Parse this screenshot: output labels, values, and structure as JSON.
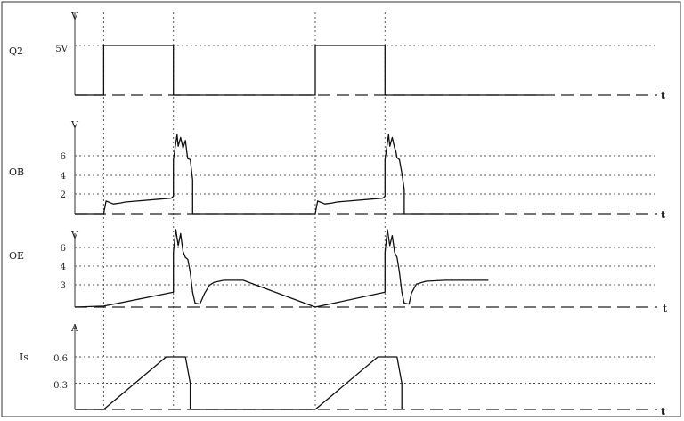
{
  "chart_data": [
    {
      "type": "line",
      "panel": "Q2",
      "label": "Q2",
      "unit": "V",
      "xlabel": "t",
      "y_ticks": [
        "5V"
      ],
      "ylim": [
        0,
        5
      ],
      "series": [
        {
          "x": [
            0,
            0.12,
            0.12,
            0.41,
            0.41,
            1.0,
            1.0,
            1.29,
            1.29,
            1.95
          ],
          "y": [
            0,
            0,
            5,
            5,
            0,
            0,
            5,
            5,
            0,
            0
          ]
        }
      ]
    },
    {
      "type": "line",
      "panel": "OB",
      "label": "OB",
      "unit": "V",
      "xlabel": "t",
      "y_ticks": [
        "6",
        "4",
        "2"
      ],
      "ylim": [
        0,
        6
      ],
      "series": [
        {
          "x": [
            0,
            0.12,
            0.13,
            0.16,
            0.19,
            0.21,
            0.4,
            0.41,
            0.41,
            0.425,
            0.43,
            0.44,
            0.45,
            0.46,
            0.465,
            0.47,
            0.48,
            0.49,
            0.49,
            1.0,
            1.01,
            1.04,
            1.07,
            1.09,
            1.28,
            1.29,
            1.29,
            1.305,
            1.31,
            1.32,
            1.33,
            1.335,
            1.34,
            1.35,
            1.36,
            1.37,
            1.37,
            1.72
          ],
          "y": [
            0,
            0,
            1.3,
            1.0,
            1.1,
            1.2,
            1.6,
            1.8,
            5.6,
            8.2,
            7.0,
            7.9,
            6.8,
            7.6,
            6.5,
            5.7,
            5.6,
            3.5,
            0,
            0,
            1.3,
            1.0,
            1.1,
            1.2,
            1.6,
            1.8,
            5.6,
            8.2,
            7.0,
            7.9,
            6.8,
            6.5,
            5.8,
            5.6,
            4.2,
            2.5,
            0,
            0
          ]
        }
      ]
    },
    {
      "type": "line",
      "panel": "OE",
      "label": "OE",
      "unit": "V",
      "xlabel": "t",
      "y_ticks": [
        "6",
        "4",
        "3"
      ],
      "ylim": [
        0,
        6
      ],
      "series": [
        {
          "x": [
            0,
            0.12,
            0.41,
            0.41,
            0.42,
            0.43,
            0.44,
            0.45,
            0.46,
            0.47,
            0.48,
            0.49,
            0.5,
            0.52,
            0.54,
            0.56,
            0.58,
            0.62,
            0.7,
            1.0,
            1.29,
            1.29,
            1.3,
            1.31,
            1.32,
            1.33,
            1.34,
            1.35,
            1.36,
            1.37,
            1.39,
            1.4,
            1.42,
            1.46,
            1.54,
            1.72
          ],
          "y": [
            0,
            0.1,
            1.5,
            5.5,
            7.8,
            6.2,
            7.4,
            5.6,
            5.0,
            4.8,
            3.5,
            1.5,
            0.4,
            0.3,
            1.4,
            2.2,
            2.5,
            2.7,
            2.7,
            0,
            1.5,
            5.5,
            7.8,
            6.2,
            7.2,
            5.5,
            5.0,
            3.5,
            1.5,
            0.4,
            0.3,
            1.4,
            2.3,
            2.6,
            2.7,
            2.7
          ]
        }
      ]
    },
    {
      "type": "line",
      "panel": "Is",
      "label": "Is",
      "unit": "A",
      "xlabel": "t",
      "y_ticks": [
        "0.6",
        "0.3"
      ],
      "ylim": [
        0,
        0.6
      ],
      "series": [
        {
          "x": [
            0,
            0.12,
            0.38,
            0.41,
            0.46,
            0.48,
            0.48,
            1.0,
            1.26,
            1.29,
            1.34,
            1.36,
            1.36
          ],
          "y": [
            0,
            0,
            0.6,
            0.6,
            0.6,
            0.3,
            0,
            0,
            0.6,
            0.6,
            0.6,
            0.3,
            0
          ]
        }
      ]
    }
  ]
}
